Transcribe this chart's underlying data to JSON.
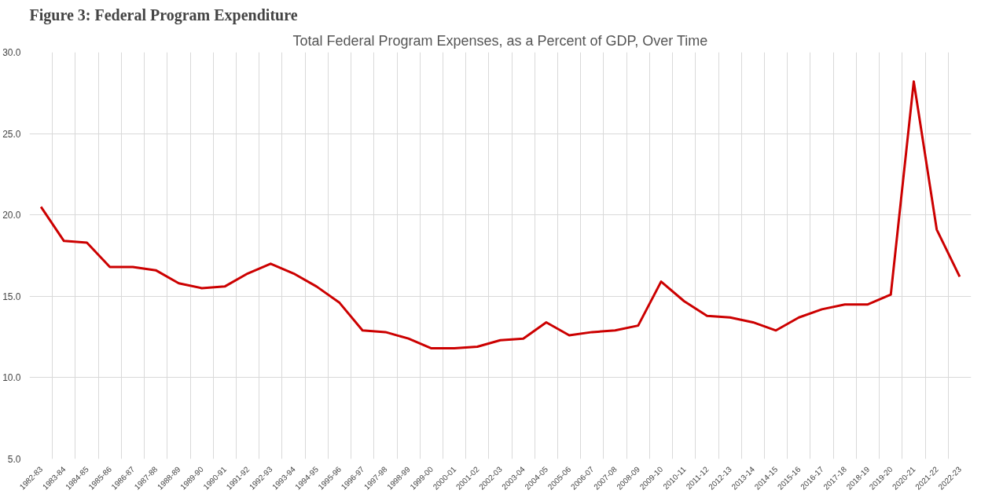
{
  "chart_data": {
    "type": "line",
    "title": "Figure 3: Federal Program Expenditure",
    "subtitle": "Total Federal Program Expenses, as a Percent of GDP, Over Time",
    "categories": [
      "1982-83",
      "1983-84",
      "1984-85",
      "1985-86",
      "1986-87",
      "1987-88",
      "1988-89",
      "1989-90",
      "1990-91",
      "1991-92",
      "1992-93",
      "1993-94",
      "1994-95",
      "1995-96",
      "1996-97",
      "1997-98",
      "1998-99",
      "1999-00",
      "2000-01",
      "2001-02",
      "2002-03",
      "2003-04",
      "2004-05",
      "2005-06",
      "2006-07",
      "2007-08",
      "2008-09",
      "2009-10",
      "2010-11",
      "2011-12",
      "2012-13",
      "2013-14",
      "2014-15",
      "2015-16",
      "2016-17",
      "2017-18",
      "2018-19",
      "2019-20",
      "2020-21",
      "2021-22",
      "2022-23"
    ],
    "series": [
      {
        "color": "#cc0000",
        "values": [
          20.5,
          18.4,
          18.3,
          16.8,
          16.8,
          16.6,
          15.8,
          15.5,
          15.6,
          16.4,
          17.0,
          16.4,
          15.6,
          14.6,
          12.9,
          12.8,
          12.4,
          11.8,
          11.8,
          11.9,
          12.3,
          12.4,
          13.4,
          12.6,
          12.8,
          12.9,
          13.2,
          15.9,
          14.7,
          13.8,
          13.7,
          13.4,
          12.9,
          13.7,
          14.2,
          14.5,
          14.5,
          15.1,
          28.2,
          19.1,
          16.2
        ]
      }
    ],
    "ylim": [
      5,
      30
    ],
    "yticks": [
      {
        "value": 5,
        "label": "5.0"
      },
      {
        "value": 10,
        "label": "10.0"
      },
      {
        "value": 15,
        "label": "15.0"
      },
      {
        "value": 20,
        "label": "20.0"
      },
      {
        "value": 25,
        "label": "25.0"
      },
      {
        "value": 30,
        "label": "30.0"
      }
    ],
    "grid": true,
    "marker": "none",
    "line_style": "solid"
  }
}
